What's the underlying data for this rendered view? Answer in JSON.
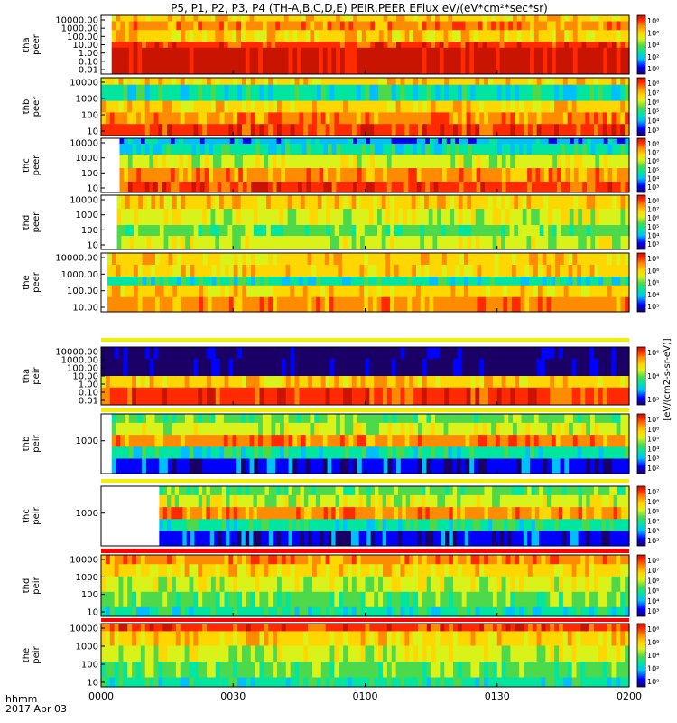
{
  "title": "P5, P1, P2, P3, P4 (TH-A,B,C,D,E) PEIR,PEER EFlux eV/(eV*cm²*sec*sr)",
  "x_axis": {
    "ticks": [
      "0000",
      "0030",
      "0100",
      "0130",
      "0200"
    ],
    "corner_label": "hhmm",
    "date_label": "2017 Apr 03"
  },
  "colorbar_side_label": "[eV/(cm2-s-sr-eV)]",
  "colors": {
    "scale": [
      "#1a0066",
      "#0000ff",
      "#00bfff",
      "#00e6a0",
      "#4cd94c",
      "#d9f21a",
      "#ffd700",
      "#ff8c00",
      "#ff2a00",
      "#c81400"
    ],
    "fill_gap": "#000000",
    "flag_yellow": "#f0f000",
    "flag_red": "#ff0000"
  },
  "chart_data": {
    "type": "heatmap",
    "x_range": [
      "2017-04-03 00:00",
      "2017-04-03 02:00"
    ],
    "panels": [
      {
        "label": [
          "tha",
          "peer"
        ],
        "y_ticks": [
          "10000.00",
          "1000.00",
          "100.00",
          "10.00",
          "1.00",
          "0.10",
          "0.01"
        ],
        "y_scale": "log",
        "z_scale": "log",
        "colorbar_ticks": [
          "10⁸",
          "10⁶",
          "10⁴",
          "10²",
          "10⁰"
        ]
      },
      {
        "label": [
          "thb",
          "peer"
        ],
        "y_ticks": [
          "10000",
          "1000",
          "100",
          "10"
        ],
        "y_scale": "log",
        "z_scale": "log",
        "colorbar_ticks": [
          "10⁸",
          "10⁷",
          "10⁶",
          "10⁵",
          "10⁴",
          "10³"
        ]
      },
      {
        "label": [
          "thc",
          "peer"
        ],
        "y_ticks": [
          "10000",
          "1000",
          "100",
          "10"
        ],
        "y_scale": "log",
        "z_scale": "log",
        "colorbar_ticks": [
          "10⁸",
          "10⁷",
          "10⁶",
          "10⁵",
          "10⁴",
          "10³"
        ]
      },
      {
        "label": [
          "thd",
          "peer"
        ],
        "y_ticks": [
          "10000",
          "1000",
          "100",
          "10"
        ],
        "y_scale": "log",
        "z_scale": "log",
        "colorbar_ticks": [
          "10⁸",
          "10⁷",
          "10⁶",
          "10⁵",
          "10⁴",
          "10³"
        ]
      },
      {
        "label": [
          "the",
          "peer"
        ],
        "y_ticks": [
          "10000.00",
          "1000.00",
          "100.00",
          "10.00"
        ],
        "y_scale": "log",
        "z_scale": "log",
        "colorbar_ticks": [
          "10⁸",
          "10⁶",
          "10⁵",
          "10⁴",
          "10³"
        ]
      },
      {
        "label": [
          "tha",
          "peir"
        ],
        "y_ticks": [
          "10000.00",
          "1000.00",
          "100.00",
          "10.00",
          "1.00",
          "0.10",
          "0.01"
        ],
        "y_scale": "log",
        "z_scale": "log",
        "colorbar_ticks": [
          "10⁶",
          "10⁴",
          "10²"
        ]
      },
      {
        "label": [
          "thb",
          "peir"
        ],
        "y_ticks": [
          "1000"
        ],
        "y_scale": "log",
        "z_scale": "log",
        "colorbar_ticks": [
          "10⁷",
          "10⁶",
          "10⁵",
          "10⁴",
          "10³",
          "10²"
        ]
      },
      {
        "label": [
          "thc",
          "peir"
        ],
        "y_ticks": [
          "1000"
        ],
        "y_scale": "log",
        "z_scale": "log",
        "colorbar_ticks": [
          "10⁷",
          "10⁶",
          "10⁵",
          "10⁴",
          "10³",
          "10²"
        ]
      },
      {
        "label": [
          "thd",
          "peir"
        ],
        "y_ticks": [
          "10000",
          "1000",
          "100",
          "10"
        ],
        "y_scale": "log",
        "z_scale": "log",
        "colorbar_ticks": [
          "10⁸",
          "10⁷",
          "10⁶",
          "10⁵",
          "10⁴",
          "10³"
        ]
      },
      {
        "label": [
          "the",
          "peir"
        ],
        "y_ticks": [
          "10000",
          "1000",
          "100",
          "10"
        ],
        "y_scale": "log",
        "z_scale": "log",
        "colorbar_ticks": [
          "10⁸",
          "10⁶",
          "10⁴",
          "10²",
          "10⁰"
        ]
      }
    ]
  }
}
